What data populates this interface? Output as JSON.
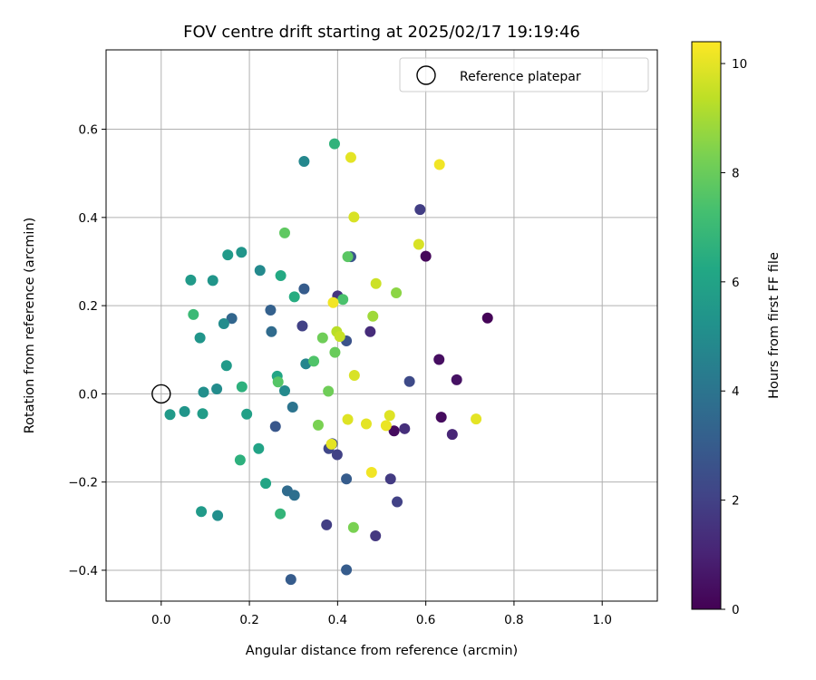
{
  "chart_data": {
    "type": "scatter",
    "title": "FOV centre drift starting at 2025/02/17 19:19:46",
    "xlabel": "Angular distance from reference (arcmin)",
    "ylabel": "Rotation from reference (arcmin)",
    "xlim": [
      -0.125,
      1.125
    ],
    "ylim": [
      -0.47,
      0.78
    ],
    "xticks": [
      0.0,
      0.2,
      0.4,
      0.6,
      0.8,
      1.0
    ],
    "xtick_labels": [
      "0.0",
      "0.2",
      "0.4",
      "0.6",
      "0.8",
      "1.0"
    ],
    "yticks": [
      -0.4,
      -0.2,
      0.0,
      0.2,
      0.4,
      0.6
    ],
    "ytick_labels": [
      "−0.4",
      "−0.2",
      "0.0",
      "0.2",
      "0.4",
      "0.6"
    ],
    "grid": true,
    "legend": {
      "position": "upper-right",
      "label": "Reference platepar"
    },
    "reference_point": {
      "x": 0.0,
      "y": 0.0
    },
    "colorbar": {
      "label": "Hours from first FF file",
      "colormap": "viridis",
      "range": [
        0,
        10.4
      ],
      "ticks": [
        0,
        2,
        4,
        6,
        8,
        10
      ],
      "tick_labels": [
        "0",
        "2",
        "4",
        "6",
        "8",
        "10"
      ]
    },
    "points": [
      {
        "x": 0.74,
        "y": 0.172,
        "h": 0.1
      },
      {
        "x": 0.6,
        "y": 0.312,
        "h": 0.2
      },
      {
        "x": 0.63,
        "y": 0.078,
        "h": 0.4
      },
      {
        "x": 0.67,
        "y": 0.032,
        "h": 0.5
      },
      {
        "x": 0.635,
        "y": -0.053,
        "h": 0.3
      },
      {
        "x": 0.528,
        "y": -0.084,
        "h": 0.3
      },
      {
        "x": 0.66,
        "y": -0.092,
        "h": 1.1
      },
      {
        "x": 0.552,
        "y": -0.079,
        "h": 1.4
      },
      {
        "x": 0.474,
        "y": 0.141,
        "h": 1.3
      },
      {
        "x": 0.587,
        "y": 0.418,
        "h": 1.9
      },
      {
        "x": 0.4,
        "y": 0.222,
        "h": 1.6
      },
      {
        "x": 0.563,
        "y": 0.028,
        "h": 2.3
      },
      {
        "x": 0.52,
        "y": -0.193,
        "h": 1.8
      },
      {
        "x": 0.535,
        "y": -0.245,
        "h": 2.0
      },
      {
        "x": 0.486,
        "y": -0.322,
        "h": 1.7
      },
      {
        "x": 0.375,
        "y": -0.297,
        "h": 1.9
      },
      {
        "x": 0.43,
        "y": 0.311,
        "h": 2.7
      },
      {
        "x": 0.42,
        "y": 0.12,
        "h": 2.6
      },
      {
        "x": 0.32,
        "y": 0.154,
        "h": 2.0
      },
      {
        "x": 0.38,
        "y": -0.124,
        "h": 2.2
      },
      {
        "x": 0.399,
        "y": -0.138,
        "h": 2.0
      },
      {
        "x": 0.388,
        "y": -0.113,
        "h": 2.4
      },
      {
        "x": 0.42,
        "y": -0.193,
        "h": 3.0
      },
      {
        "x": 0.42,
        "y": -0.399,
        "h": 3.0
      },
      {
        "x": 0.294,
        "y": -0.421,
        "h": 3.0
      },
      {
        "x": 0.259,
        "y": -0.074,
        "h": 2.8
      },
      {
        "x": 0.324,
        "y": 0.238,
        "h": 3.0
      },
      {
        "x": 0.248,
        "y": 0.19,
        "h": 3.2
      },
      {
        "x": 0.16,
        "y": 0.171,
        "h": 3.4
      },
      {
        "x": 0.25,
        "y": 0.141,
        "h": 3.6
      },
      {
        "x": 0.286,
        "y": -0.22,
        "h": 3.6
      },
      {
        "x": 0.302,
        "y": -0.23,
        "h": 3.8
      },
      {
        "x": 0.298,
        "y": -0.03,
        "h": 4.0
      },
      {
        "x": 0.328,
        "y": 0.068,
        "h": 4.7
      },
      {
        "x": 0.28,
        "y": 0.007,
        "h": 4.9
      },
      {
        "x": 0.324,
        "y": 0.527,
        "h": 4.8
      },
      {
        "x": 0.224,
        "y": 0.28,
        "h": 4.9
      },
      {
        "x": 0.142,
        "y": 0.159,
        "h": 5.0
      },
      {
        "x": 0.126,
        "y": 0.011,
        "h": 5.0
      },
      {
        "x": 0.128,
        "y": -0.276,
        "h": 5.1
      },
      {
        "x": 0.096,
        "y": 0.004,
        "h": 5.1
      },
      {
        "x": 0.182,
        "y": 0.321,
        "h": 5.4
      },
      {
        "x": 0.151,
        "y": 0.315,
        "h": 5.6
      },
      {
        "x": 0.117,
        "y": 0.257,
        "h": 5.4
      },
      {
        "x": 0.067,
        "y": 0.258,
        "h": 5.6
      },
      {
        "x": 0.088,
        "y": 0.127,
        "h": 5.4
      },
      {
        "x": 0.148,
        "y": 0.064,
        "h": 5.6
      },
      {
        "x": 0.02,
        "y": -0.047,
        "h": 5.6
      },
      {
        "x": 0.053,
        "y": -0.04,
        "h": 5.4
      },
      {
        "x": 0.094,
        "y": -0.045,
        "h": 5.7
      },
      {
        "x": 0.194,
        "y": -0.046,
        "h": 5.9
      },
      {
        "x": 0.091,
        "y": -0.267,
        "h": 5.6
      },
      {
        "x": 0.221,
        "y": -0.124,
        "h": 6.0
      },
      {
        "x": 0.237,
        "y": -0.203,
        "h": 6.1
      },
      {
        "x": 0.263,
        "y": 0.04,
        "h": 6.1
      },
      {
        "x": 0.271,
        "y": 0.268,
        "h": 6.3
      },
      {
        "x": 0.302,
        "y": 0.22,
        "h": 6.4
      },
      {
        "x": 0.393,
        "y": 0.567,
        "h": 6.7
      },
      {
        "x": 0.183,
        "y": 0.016,
        "h": 6.6
      },
      {
        "x": 0.179,
        "y": -0.15,
        "h": 6.6
      },
      {
        "x": 0.27,
        "y": -0.272,
        "h": 6.8
      },
      {
        "x": 0.073,
        "y": 0.18,
        "h": 7.0
      },
      {
        "x": 0.346,
        "y": 0.074,
        "h": 7.5
      },
      {
        "x": 0.265,
        "y": 0.027,
        "h": 7.6
      },
      {
        "x": 0.412,
        "y": 0.214,
        "h": 7.4
      },
      {
        "x": 0.423,
        "y": 0.311,
        "h": 7.7
      },
      {
        "x": 0.28,
        "y": 0.365,
        "h": 7.8
      },
      {
        "x": 0.366,
        "y": 0.127,
        "h": 8.1
      },
      {
        "x": 0.394,
        "y": 0.094,
        "h": 8.0
      },
      {
        "x": 0.379,
        "y": 0.006,
        "h": 8.1
      },
      {
        "x": 0.356,
        "y": -0.071,
        "h": 8.3
      },
      {
        "x": 0.436,
        "y": -0.303,
        "h": 8.3
      },
      {
        "x": 0.533,
        "y": 0.229,
        "h": 8.6
      },
      {
        "x": 0.48,
        "y": 0.176,
        "h": 8.9
      },
      {
        "x": 0.398,
        "y": 0.141,
        "h": 9.3
      },
      {
        "x": 0.405,
        "y": 0.13,
        "h": 9.5
      },
      {
        "x": 0.487,
        "y": 0.25,
        "h": 9.6
      },
      {
        "x": 0.437,
        "y": 0.401,
        "h": 9.8
      },
      {
        "x": 0.43,
        "y": 0.536,
        "h": 10.0
      },
      {
        "x": 0.631,
        "y": 0.52,
        "h": 10.2
      },
      {
        "x": 0.584,
        "y": 0.339,
        "h": 9.8
      },
      {
        "x": 0.39,
        "y": 0.207,
        "h": 10.2
      },
      {
        "x": 0.438,
        "y": 0.042,
        "h": 9.8
      },
      {
        "x": 0.423,
        "y": -0.058,
        "h": 9.9
      },
      {
        "x": 0.465,
        "y": -0.068,
        "h": 10.0
      },
      {
        "x": 0.518,
        "y": -0.049,
        "h": 9.9
      },
      {
        "x": 0.51,
        "y": -0.072,
        "h": 10.1
      },
      {
        "x": 0.714,
        "y": -0.057,
        "h": 10.0
      },
      {
        "x": 0.386,
        "y": -0.114,
        "h": 10.0
      },
      {
        "x": 0.477,
        "y": -0.178,
        "h": 10.2
      }
    ]
  }
}
